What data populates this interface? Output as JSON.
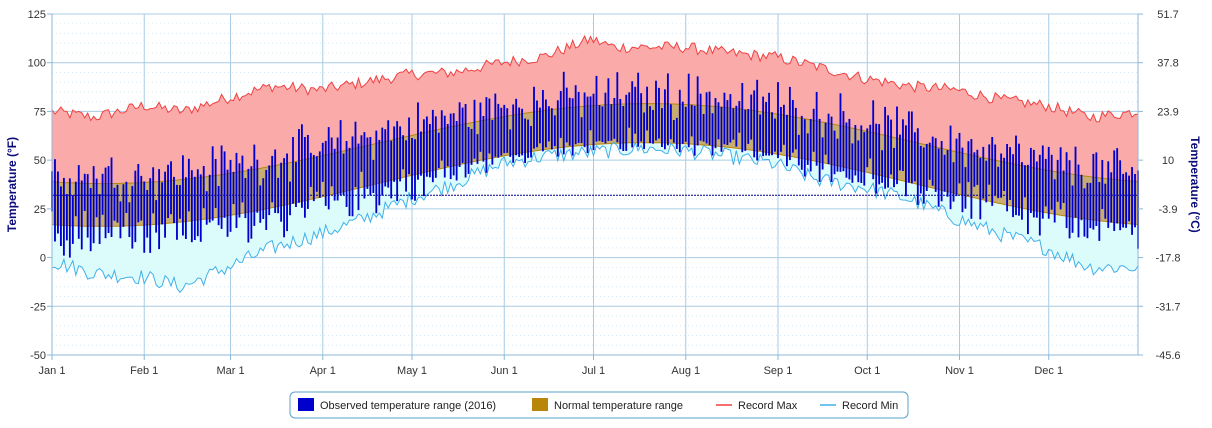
{
  "chart_data": {
    "type": "area",
    "y_axis_left": {
      "title": "Temperature (°F)",
      "range": [
        -50,
        125
      ],
      "ticks": [
        125,
        100,
        75,
        50,
        25,
        0,
        -25,
        -50
      ],
      "minor_step": 5
    },
    "y_axis_right": {
      "title": "Temperature (°C)",
      "tick_labels": [
        "51.7",
        "37.8",
        "23.9",
        "10",
        "-3.9",
        "-17.8",
        "-31.7",
        "-45.6"
      ]
    },
    "x_axis": {
      "labels": [
        "Jan 1",
        "Feb 1",
        "Mar 1",
        "Apr 1",
        "May 1",
        "Jun 1",
        "Jul 1",
        "Aug 1",
        "Sep 1",
        "Oct 1",
        "Nov 1",
        "Dec 1"
      ],
      "days_in_year": 366
    },
    "freezing_line_f": 32,
    "grid": true,
    "legend_position": "bottom-center",
    "normal_model": {
      "mean": 48,
      "amplitude": 21,
      "peak_day": 201,
      "half_range_mean": 10.5,
      "half_range_amp": 0.5
    },
    "record_max_model": {
      "mean": 82,
      "amplitude": 15,
      "peak_day": 198
    },
    "record_min_model": {
      "mean": 20,
      "amplitude": 30,
      "peak_day": 202
    },
    "record_max_sample": [
      [
        1,
        75
      ],
      [
        15,
        72
      ],
      [
        32,
        78
      ],
      [
        45,
        75
      ],
      [
        60,
        82
      ],
      [
        75,
        88
      ],
      [
        91,
        86
      ],
      [
        106,
        90
      ],
      [
        121,
        94
      ],
      [
        136,
        95
      ],
      [
        152,
        100
      ],
      [
        166,
        103
      ],
      [
        182,
        112
      ],
      [
        190,
        108
      ],
      [
        213,
        108
      ],
      [
        228,
        105
      ],
      [
        244,
        103
      ],
      [
        258,
        98
      ],
      [
        274,
        92
      ],
      [
        289,
        88
      ],
      [
        305,
        86
      ],
      [
        320,
        81
      ],
      [
        335,
        78
      ],
      [
        350,
        72
      ],
      [
        366,
        75
      ]
    ],
    "record_min_sample": [
      [
        1,
        -2
      ],
      [
        15,
        -8
      ],
      [
        32,
        -10
      ],
      [
        45,
        -15
      ],
      [
        60,
        -5
      ],
      [
        75,
        5
      ],
      [
        91,
        12
      ],
      [
        106,
        20
      ],
      [
        121,
        30
      ],
      [
        136,
        38
      ],
      [
        152,
        48
      ],
      [
        166,
        52
      ],
      [
        182,
        54
      ],
      [
        198,
        56
      ],
      [
        213,
        55
      ],
      [
        228,
        52
      ],
      [
        244,
        48
      ],
      [
        258,
        40
      ],
      [
        274,
        36
      ],
      [
        289,
        30
      ],
      [
        305,
        20
      ],
      [
        320,
        12
      ],
      [
        335,
        5
      ],
      [
        350,
        -5
      ],
      [
        366,
        -5
      ]
    ],
    "observed_note": "daily observed high/low bars for 2016",
    "legend": [
      {
        "label": "Observed temperature range (2016)",
        "color": "#0000cc",
        "kind": "bar"
      },
      {
        "label": "Normal temperature range",
        "color": "#b8860b",
        "kind": "area"
      },
      {
        "label": "Record Max",
        "color": "#f04040",
        "kind": "line"
      },
      {
        "label": "Record Min",
        "color": "#40b0e8",
        "kind": "line"
      }
    ],
    "colors": {
      "record_max_fill": "#fbaaaa",
      "record_min_fill": "#dcfcfc",
      "normal_fill": "#c9ac70",
      "normal_stroke": "#b8860b",
      "observed": "#0000cc",
      "grid": "#a8cce4",
      "freezing": "#00008b"
    }
  }
}
